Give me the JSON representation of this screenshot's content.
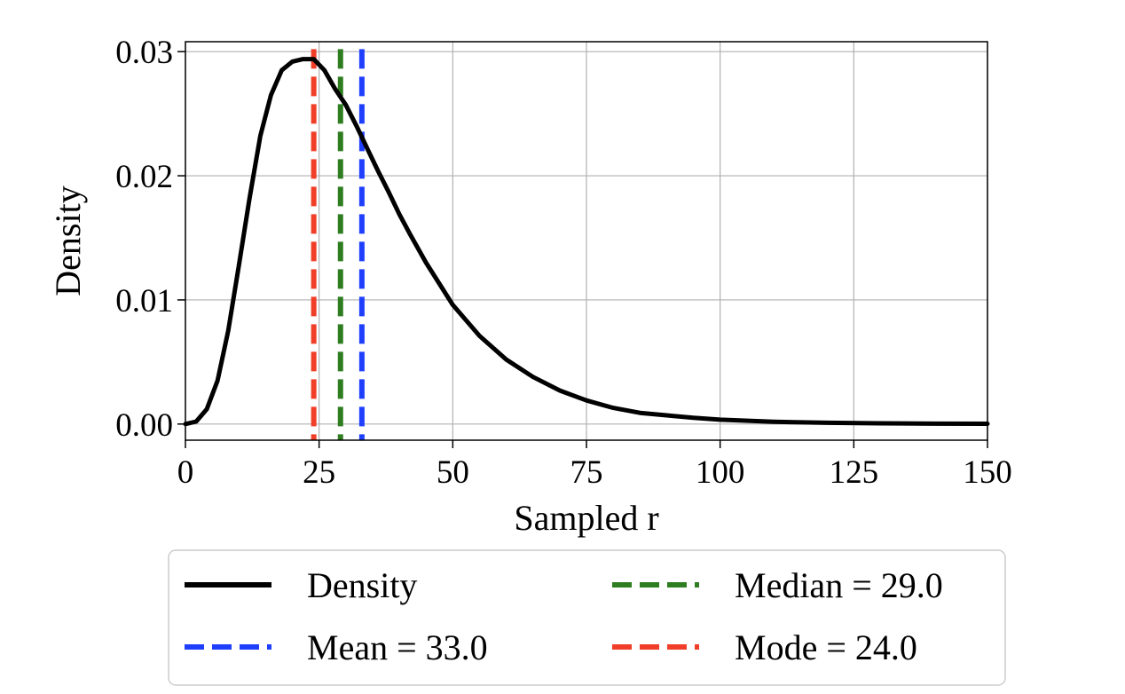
{
  "chart_data": {
    "type": "line",
    "xlabel": "Sampled r",
    "ylabel": "Density",
    "xlim": [
      0,
      150
    ],
    "ylim": [
      -0.0013,
      0.0308
    ],
    "grid": true,
    "legend_position": "bottom",
    "x_ticks": [
      0,
      25,
      50,
      75,
      100,
      125,
      150
    ],
    "x_tick_labels": [
      "0",
      "25",
      "50",
      "75",
      "100",
      "125",
      "150"
    ],
    "y_ticks": [
      0.0,
      0.01,
      0.02,
      0.03
    ],
    "y_tick_labels": [
      "0.00",
      "0.01",
      "0.02",
      "0.03"
    ],
    "series": [
      {
        "name": "Density",
        "color": "#000000",
        "style": "solid",
        "x": [
          0,
          2,
          4,
          6,
          8,
          10,
          12,
          14,
          16,
          18,
          20,
          22,
          24,
          26,
          28,
          30,
          32,
          34,
          36,
          38,
          40,
          42,
          45,
          50,
          55,
          60,
          65,
          70,
          75,
          80,
          85,
          90,
          95,
          100,
          110,
          120,
          130,
          140,
          150
        ],
        "y": [
          0.0,
          0.0002,
          0.0012,
          0.0035,
          0.0075,
          0.0128,
          0.0182,
          0.0232,
          0.0265,
          0.0285,
          0.0292,
          0.0294,
          0.0294,
          0.0285,
          0.027,
          0.0257,
          0.024,
          0.0222,
          0.0204,
          0.0187,
          0.0169,
          0.0153,
          0.013,
          0.0096,
          0.0071,
          0.0052,
          0.0038,
          0.0027,
          0.0019,
          0.0013,
          0.0009,
          0.0007,
          0.0005,
          0.00035,
          0.00018,
          0.0001,
          6e-05,
          3e-05,
          2e-05
        ]
      }
    ],
    "vlines": [
      {
        "name": "Mean = 33.0",
        "x": 33.0,
        "color": "#1f3fff",
        "style": "dashed"
      },
      {
        "name": "Median = 29.0",
        "x": 29.0,
        "color": "#2e7d20",
        "style": "dashed"
      },
      {
        "name": "Mode = 24.0",
        "x": 24.0,
        "color": "#f03e28",
        "style": "dashed"
      }
    ],
    "legend": [
      {
        "label": "Density",
        "color": "#000000",
        "style": "solid"
      },
      {
        "label": "Median = 29.0",
        "color": "#2e7d20",
        "style": "dashed"
      },
      {
        "label": "Mean = 33.0",
        "color": "#1f3fff",
        "style": "dashed"
      },
      {
        "label": "Mode = 24.0",
        "color": "#f03e28",
        "style": "dashed"
      }
    ]
  }
}
